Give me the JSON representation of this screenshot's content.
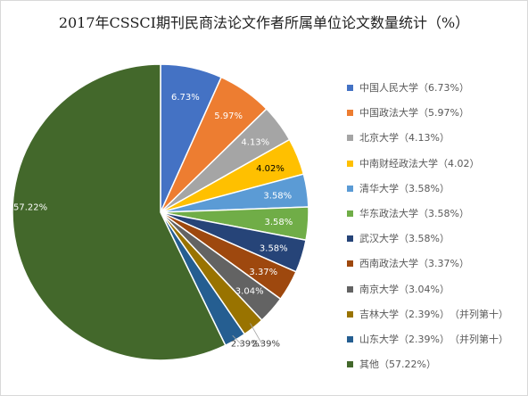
{
  "chart_data": {
    "type": "pie",
    "title": "2017年CSSCI期刊民商法论文作者所属单位论文数量统计（%）",
    "slices": [
      {
        "label": "中国人民大学",
        "value": 6.73,
        "data_label": "6.73%",
        "legend": "中国人民大学（6.73%）",
        "color": "#4472c4"
      },
      {
        "label": "中国政法大学",
        "value": 5.97,
        "data_label": "5.97%",
        "legend": "中国政法大学（5.97%）",
        "color": "#ed7d31"
      },
      {
        "label": "北京大学",
        "value": 4.13,
        "data_label": "4.13%",
        "legend": "北京大学（4.13%）",
        "color": "#a5a5a5"
      },
      {
        "label": "中南财经政法大学",
        "value": 4.02,
        "data_label": "4.02%",
        "legend": "中南财经政法大学（4.02）",
        "color": "#ffc000"
      },
      {
        "label": "清华大学",
        "value": 3.58,
        "data_label": "3.58%",
        "legend": "清华大学（3.58%）",
        "color": "#5b9bd5"
      },
      {
        "label": "华东政法大学",
        "value": 3.58,
        "data_label": "3.58%",
        "legend": "华东政法大学（3.58%）",
        "color": "#70ad47"
      },
      {
        "label": "武汉大学",
        "value": 3.58,
        "data_label": "3.58%",
        "legend": "武汉大学（3.58%）",
        "color": "#264478"
      },
      {
        "label": "西南政法大学",
        "value": 3.37,
        "data_label": "3.37%",
        "legend": "西南政法大学（3.37%）",
        "color": "#9e480e"
      },
      {
        "label": "南京大学",
        "value": 3.04,
        "data_label": "3.04%",
        "legend": "南京大学（3.04%）",
        "color": "#636363"
      },
      {
        "label": "吉林大学",
        "value": 2.39,
        "data_label": "2.39%",
        "legend": "吉林大学（2.39%）　（并列第十）",
        "color": "#997300"
      },
      {
        "label": "山东大学",
        "value": 2.39,
        "data_label": "2.39%",
        "legend": "山东大学（2.39%）　（并列第十）",
        "color": "#255e91"
      },
      {
        "label": "其他",
        "value": 57.22,
        "data_label": "57.22%",
        "legend": "其他（57.22%）",
        "color": "#43682b"
      }
    ],
    "legend_position": "right"
  }
}
